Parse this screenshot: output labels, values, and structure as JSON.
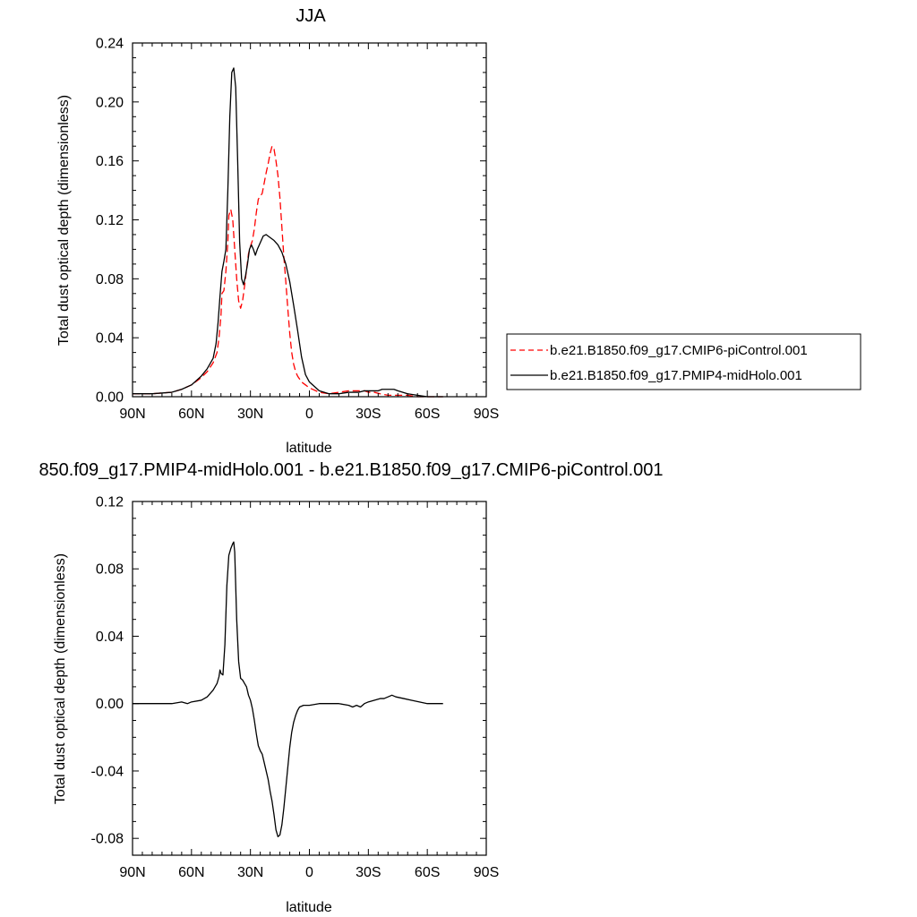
{
  "chart_data": [
    {
      "type": "line",
      "title": "JJA",
      "xlabel": "latitude",
      "ylabel": "Total dust optical depth (dimensionless)",
      "xlim": [
        90,
        -90
      ],
      "ylim": [
        0,
        0.24
      ],
      "x_ticks": [
        90,
        60,
        30,
        0,
        -30,
        -60,
        -90
      ],
      "x_tick_labels": [
        "90N",
        "60N",
        "30N",
        "0",
        "30S",
        "60S",
        "90S"
      ],
      "y_ticks": [
        0,
        0.04,
        0.08,
        0.12,
        0.16,
        0.2,
        0.24
      ],
      "y_tick_labels": [
        "0.00",
        "0.04",
        "0.08",
        "0.12",
        "0.16",
        "0.20",
        "0.24"
      ],
      "grid": false,
      "legend_position": "right",
      "series": [
        {
          "name": "b.e21.B1850.f09_g17.CMIP6-piControl.001",
          "color": "#ff0000",
          "dash": "dashed",
          "x": [
            90,
            80,
            70,
            65,
            60,
            55,
            52,
            49,
            47,
            46,
            45,
            44.5,
            43.5,
            42.5,
            41.5,
            41,
            40,
            39,
            38,
            37,
            36,
            35,
            34,
            33,
            32,
            31,
            30,
            29,
            28,
            27,
            26,
            25,
            24,
            23,
            22,
            21,
            20,
            19,
            18,
            17,
            16,
            15,
            14,
            13,
            12,
            11,
            10,
            9,
            8,
            7,
            6,
            5,
            4,
            3,
            2,
            1,
            0,
            -5,
            -10,
            -15,
            -20,
            -25,
            -28,
            -30,
            -33,
            -36,
            -40,
            -45,
            -50,
            -55,
            -60,
            -65,
            -68
          ],
          "values": [
            0.002,
            0.002,
            0.003,
            0.005,
            0.008,
            0.013,
            0.017,
            0.023,
            0.03,
            0.04,
            0.055,
            0.07,
            0.072,
            0.085,
            0.105,
            0.123,
            0.127,
            0.12,
            0.1,
            0.08,
            0.065,
            0.06,
            0.065,
            0.075,
            0.086,
            0.097,
            0.102,
            0.106,
            0.114,
            0.125,
            0.134,
            0.136,
            0.138,
            0.145,
            0.152,
            0.158,
            0.165,
            0.17,
            0.168,
            0.16,
            0.15,
            0.135,
            0.115,
            0.095,
            0.078,
            0.06,
            0.043,
            0.03,
            0.022,
            0.017,
            0.014,
            0.012,
            0.01,
            0.009,
            0.008,
            0.007,
            0.006,
            0.003,
            0.002,
            0.003,
            0.004,
            0.004,
            0.004,
            0.003,
            0.003,
            0.002,
            0.001,
            0.001,
            0.001,
            0.0,
            0.0,
            0.0,
            0.0
          ]
        },
        {
          "name": "b.e21.B1850.f09_g17.PMIP4-midHolo.001",
          "color": "#000000",
          "dash": "solid",
          "x": [
            90,
            80,
            70,
            65,
            60,
            55,
            52,
            49,
            47.5,
            46.5,
            45.5,
            44.5,
            43.5,
            42.5,
            41.5,
            40.5,
            39.5,
            38.5,
            37.5,
            36.5,
            35.5,
            34.5,
            33.5,
            32.5,
            31.5,
            30.5,
            29.5,
            28.5,
            27.5,
            26.5,
            25.5,
            24.5,
            23.5,
            22,
            20,
            18,
            16,
            14,
            12,
            10,
            8,
            6,
            4,
            2,
            0,
            -5,
            -10,
            -15,
            -20,
            -25,
            -28,
            -30,
            -33,
            -35,
            -37,
            -40,
            -43,
            -45,
            -50,
            -55,
            -60,
            -65,
            -68
          ],
          "values": [
            0.002,
            0.002,
            0.003,
            0.005,
            0.008,
            0.014,
            0.019,
            0.026,
            0.036,
            0.05,
            0.068,
            0.085,
            0.092,
            0.1,
            0.14,
            0.19,
            0.22,
            0.223,
            0.21,
            0.16,
            0.105,
            0.08,
            0.076,
            0.082,
            0.09,
            0.1,
            0.103,
            0.1,
            0.096,
            0.1,
            0.103,
            0.106,
            0.109,
            0.11,
            0.108,
            0.106,
            0.103,
            0.098,
            0.09,
            0.078,
            0.062,
            0.045,
            0.027,
            0.015,
            0.01,
            0.004,
            0.002,
            0.002,
            0.003,
            0.003,
            0.004,
            0.004,
            0.004,
            0.004,
            0.005,
            0.005,
            0.005,
            0.004,
            0.002,
            0.001,
            0.0,
            0.0,
            0.0
          ]
        }
      ]
    },
    {
      "type": "line",
      "title": "850.f09_g17.PMIP4-midHolo.001 - b.e21.B1850.f09_g17.CMIP6-piControl.001",
      "xlabel": "latitude",
      "ylabel": "Total dust optical depth (dimensionless)",
      "xlim": [
        90,
        -90
      ],
      "ylim": [
        -0.09,
        0.12
      ],
      "x_ticks": [
        90,
        60,
        30,
        0,
        -30,
        -60,
        -90
      ],
      "x_tick_labels": [
        "90N",
        "60N",
        "30N",
        "0",
        "30S",
        "60S",
        "90S"
      ],
      "y_ticks": [
        -0.08,
        -0.04,
        0.0,
        0.04,
        0.08,
        0.12
      ],
      "y_tick_labels": [
        "-0.08",
        "-0.04",
        "0.00",
        "0.04",
        "0.08",
        "0.12"
      ],
      "grid": false,
      "series": [
        {
          "color": "#000000",
          "dash": "solid",
          "x": [
            90,
            80,
            70,
            65,
            62,
            60,
            55,
            52,
            49,
            47,
            46,
            45.5,
            45,
            44,
            43,
            42,
            41,
            40,
            39,
            38.5,
            38,
            37,
            36,
            35,
            34,
            33,
            32,
            31,
            30,
            29,
            28,
            27,
            26,
            25,
            24,
            23,
            22,
            21,
            20,
            19,
            18,
            17,
            16,
            15,
            14,
            13,
            12,
            11,
            10,
            9,
            8,
            7,
            6,
            5,
            3,
            0,
            -5,
            -10,
            -15,
            -20,
            -22,
            -24,
            -26,
            -28,
            -30,
            -33,
            -36,
            -38,
            -40,
            -42,
            -44,
            -48,
            -52,
            -56,
            -60,
            -64,
            -68
          ],
          "values": [
            0.0,
            0.0,
            0.0,
            0.001,
            0.0,
            0.001,
            0.002,
            0.004,
            0.008,
            0.012,
            0.016,
            0.02,
            0.018,
            0.017,
            0.035,
            0.07,
            0.088,
            0.092,
            0.095,
            0.096,
            0.09,
            0.05,
            0.025,
            0.015,
            0.014,
            0.012,
            0.01,
            0.005,
            0.002,
            -0.003,
            -0.01,
            -0.018,
            -0.025,
            -0.028,
            -0.03,
            -0.035,
            -0.04,
            -0.045,
            -0.052,
            -0.058,
            -0.066,
            -0.075,
            -0.079,
            -0.078,
            -0.072,
            -0.062,
            -0.05,
            -0.038,
            -0.026,
            -0.017,
            -0.011,
            -0.007,
            -0.004,
            -0.002,
            -0.001,
            -0.001,
            0.0,
            0.0,
            0.0,
            -0.001,
            -0.002,
            -0.001,
            -0.002,
            0.0,
            0.001,
            0.002,
            0.003,
            0.003,
            0.004,
            0.005,
            0.004,
            0.003,
            0.002,
            0.001,
            0.0,
            0.0,
            0.0
          ]
        }
      ]
    }
  ]
}
